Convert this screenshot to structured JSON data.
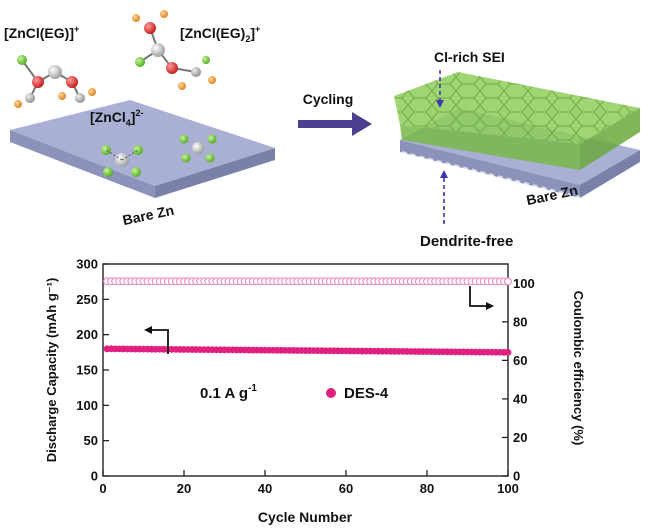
{
  "schematic": {
    "species": {
      "zncl_eg": "[ZnCl(EG)]",
      "zncl_eg_sup": "+",
      "zncl_eg2": "[ZnCl(EG)",
      "zncl_eg2_sub": "2",
      "zncl_eg2_close": "]",
      "zncl_eg2_sup": "+",
      "zncl4": "[ZnCl",
      "zncl4_sub": "4",
      "zncl4_close": "]",
      "zncl4_sup": "2-"
    },
    "left_plate_label": "Bare Zn",
    "arrow_label": "Cycling",
    "sei_label": "Cl-rich SEI",
    "right_plate_label": "Bare Zn",
    "dendrite_label": "Dendrite-free"
  },
  "colors": {
    "plate_top": "#a9b0d3",
    "plate_side": "#8c93ba",
    "sei_green": "#8fce5a",
    "series_capacity": "#e0207e",
    "series_ce": "#f08ac0",
    "arrow": "#4b3f8f",
    "atom_zn": "#c8c8c8",
    "atom_cl": "#6ccd2f",
    "atom_o": "#e53030",
    "atom_c": "#b0b0b0",
    "atom_h": "#f0a030"
  },
  "chart_data": {
    "type": "scatter",
    "xlabel": "Cycle Number",
    "ylabel_left": "Discharge Capacity (mAh g⁻¹)",
    "ylabel_right": "Coulombic efficiency (%)",
    "xlim": [
      0,
      100
    ],
    "ylim_left": [
      0,
      300
    ],
    "ylim_right": [
      0,
      110
    ],
    "x_ticks": [
      "0",
      "20",
      "40",
      "60",
      "80",
      "100"
    ],
    "y_left_ticks": [
      "0",
      "50",
      "100",
      "150",
      "200",
      "250",
      "300"
    ],
    "y_right_ticks": [
      "0",
      "20",
      "40",
      "60",
      "80",
      "100"
    ],
    "annotation_rate": "0.1 A g",
    "annotation_rate_sup": "-1",
    "legend": "DES-4",
    "legend_position": "center",
    "series": [
      {
        "name": "DES-4",
        "axis": "left",
        "marker": "filled",
        "x_start": 1,
        "x_end": 100,
        "y_start": 180,
        "y_end": 175
      },
      {
        "name": "DES-4",
        "axis": "right",
        "marker": "hollow",
        "x_start": 1,
        "x_end": 100,
        "y_start": 101,
        "y_end": 101
      }
    ]
  }
}
